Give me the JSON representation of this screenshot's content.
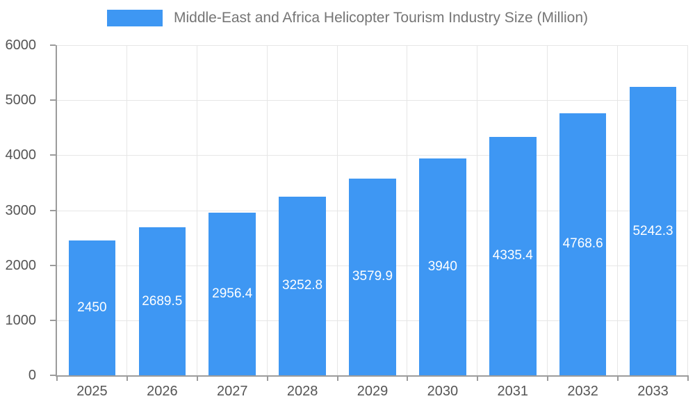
{
  "chart_data": {
    "type": "bar",
    "title": "Middle-East and Africa Helicopter Tourism Industry Size (Million)",
    "categories": [
      "2025",
      "2026",
      "2027",
      "2028",
      "2029",
      "2030",
      "2031",
      "2032",
      "2033"
    ],
    "values": [
      2450,
      2689.5,
      2956.4,
      3252.8,
      3579.9,
      3940,
      4335.4,
      4768.6,
      5242.3
    ],
    "value_labels": [
      "2450",
      "2689.5",
      "2956.4",
      "3252.8",
      "3579.9",
      "3940",
      "4335.4",
      "4768.6",
      "5242.3"
    ],
    "xlabel": "",
    "ylabel": "",
    "ylim": [
      0,
      6000
    ],
    "y_ticks": [
      0,
      1000,
      2000,
      3000,
      4000,
      5000,
      6000
    ],
    "grid": true,
    "legend_position": "top",
    "colors": {
      "bar": "#3e97f3",
      "grid_line": "#e6e6e6",
      "axis_line": "#9b9b9b",
      "axis_text": "#555555",
      "title_text": "#757575",
      "value_label": "#ffffff",
      "background": "#ffffff"
    }
  }
}
